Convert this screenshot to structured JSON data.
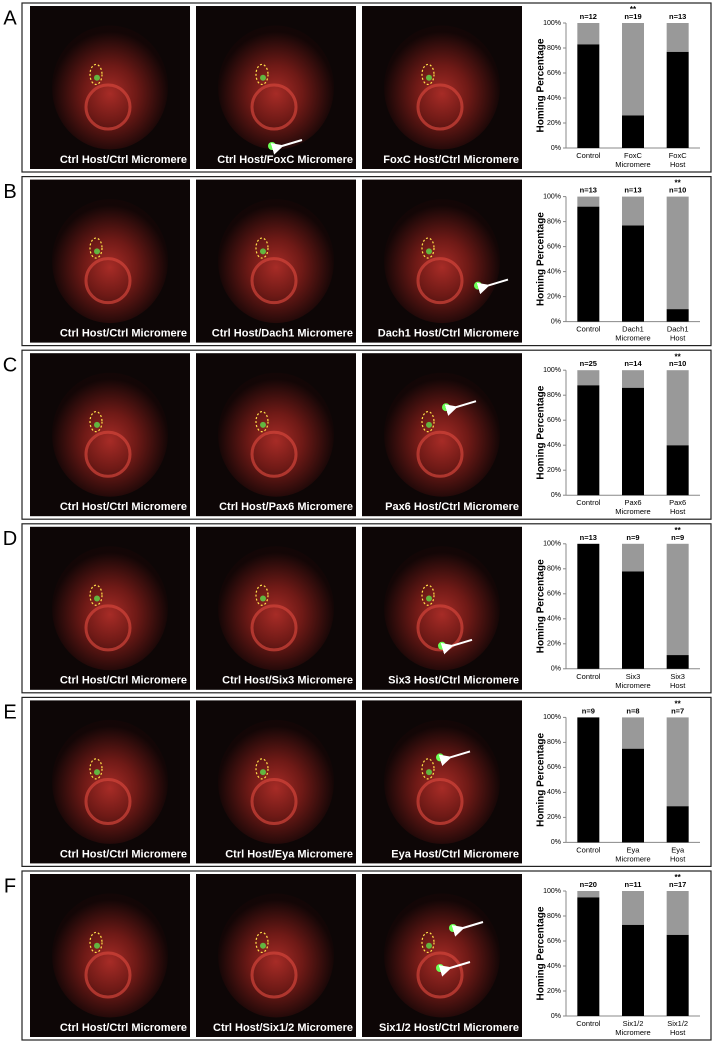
{
  "axis": {
    "ylabel": "Homing Percentage",
    "ylim": [
      0,
      100
    ],
    "yticks": [
      {
        "value": 0,
        "label": "0%"
      },
      {
        "value": 20,
        "label": "20%"
      },
      {
        "value": 40,
        "label": "40%"
      },
      {
        "value": 60,
        "label": "60%"
      },
      {
        "value": 80,
        "label": "80%"
      },
      {
        "value": 100,
        "label": "100%"
      }
    ]
  },
  "panels": [
    {
      "letter": "A",
      "images": [
        "Ctrl Host/Ctrl Micromere",
        "Ctrl Host/FoxC Micromere",
        "FoxC Host/Ctrl Micromere"
      ],
      "chart": {
        "type": "bar",
        "stacked": true,
        "categories": [
          [
            "Control"
          ],
          [
            "FoxC",
            "Micromere"
          ],
          [
            "FoxC",
            "Host"
          ]
        ],
        "n_labels": [
          "n=12",
          "n=19",
          "n=13"
        ],
        "significance": [
          null,
          "**",
          null
        ],
        "series": [
          {
            "color": "#000000",
            "values": [
              83,
              26,
              77
            ]
          },
          {
            "color": "#999999",
            "values": [
              17,
              74,
              23
            ]
          }
        ]
      }
    },
    {
      "letter": "B",
      "images": [
        "Ctrl Host/Ctrl Micromere",
        "Ctrl Host/Dach1 Micromere",
        "Dach1 Host/Ctrl Micromere"
      ],
      "chart": {
        "type": "bar",
        "stacked": true,
        "categories": [
          [
            "Control"
          ],
          [
            "Dach1",
            "Micromere"
          ],
          [
            "Dach1",
            "Host"
          ]
        ],
        "n_labels": [
          "n=13",
          "n=13",
          "n=10"
        ],
        "significance": [
          null,
          null,
          "**"
        ],
        "series": [
          {
            "color": "#000000",
            "values": [
              92,
              77,
              10
            ]
          },
          {
            "color": "#999999",
            "values": [
              8,
              23,
              90
            ]
          }
        ]
      }
    },
    {
      "letter": "C",
      "images": [
        "Ctrl Host/Ctrl Micromere",
        "Ctrl Host/Pax6 Micromere",
        "Pax6 Host/Ctrl Micromere"
      ],
      "chart": {
        "type": "bar",
        "stacked": true,
        "categories": [
          [
            "Control"
          ],
          [
            "Pax6",
            "Micromere"
          ],
          [
            "Pax6",
            "Host"
          ]
        ],
        "n_labels": [
          "n=25",
          "n=14",
          "n=10"
        ],
        "significance": [
          null,
          null,
          "**"
        ],
        "series": [
          {
            "color": "#000000",
            "values": [
              88,
              86,
              40
            ]
          },
          {
            "color": "#999999",
            "values": [
              12,
              14,
              60
            ]
          }
        ]
      }
    },
    {
      "letter": "D",
      "images": [
        "Ctrl Host/Ctrl Micromere",
        "Ctrl Host/Six3 Micromere",
        "Six3 Host/Ctrl Micromere"
      ],
      "chart": {
        "type": "bar",
        "stacked": true,
        "categories": [
          [
            "Control"
          ],
          [
            "Six3",
            "Micromere"
          ],
          [
            "Six3",
            "Host"
          ]
        ],
        "n_labels": [
          "n=13",
          "n=9",
          "n=9"
        ],
        "significance": [
          null,
          null,
          "**"
        ],
        "series": [
          {
            "color": "#000000",
            "values": [
              100,
              78,
              11
            ]
          },
          {
            "color": "#999999",
            "values": [
              0,
              22,
              89
            ]
          }
        ]
      }
    },
    {
      "letter": "E",
      "images": [
        "Ctrl Host/Ctrl Micromere",
        "Ctrl Host/Eya Micromere",
        "Eya Host/Ctrl Micromere"
      ],
      "chart": {
        "type": "bar",
        "stacked": true,
        "categories": [
          [
            "Control"
          ],
          [
            "Eya",
            "Micromere"
          ],
          [
            "Eya",
            "Host"
          ]
        ],
        "n_labels": [
          "n=9",
          "n=8",
          "n=7"
        ],
        "significance": [
          null,
          null,
          "**"
        ],
        "series": [
          {
            "color": "#000000",
            "values": [
              100,
              75,
              29
            ]
          },
          {
            "color": "#999999",
            "values": [
              0,
              25,
              71
            ]
          }
        ]
      }
    },
    {
      "letter": "F",
      "images": [
        "Ctrl Host/Ctrl Micromere",
        "Ctrl Host/Six1/2 Micromere",
        "Six1/2 Host/Ctrl Micromere"
      ],
      "chart": {
        "type": "bar",
        "stacked": true,
        "categories": [
          [
            "Control"
          ],
          [
            "Six1/2",
            "Micromere"
          ],
          [
            "Six1/2",
            "Host"
          ]
        ],
        "n_labels": [
          "n=20",
          "n=11",
          "n=17"
        ],
        "significance": [
          null,
          null,
          "**"
        ],
        "series": [
          {
            "color": "#000000",
            "values": [
              95,
              73,
              65
            ]
          },
          {
            "color": "#999999",
            "values": [
              5,
              27,
              35
            ]
          }
        ]
      }
    }
  ]
}
